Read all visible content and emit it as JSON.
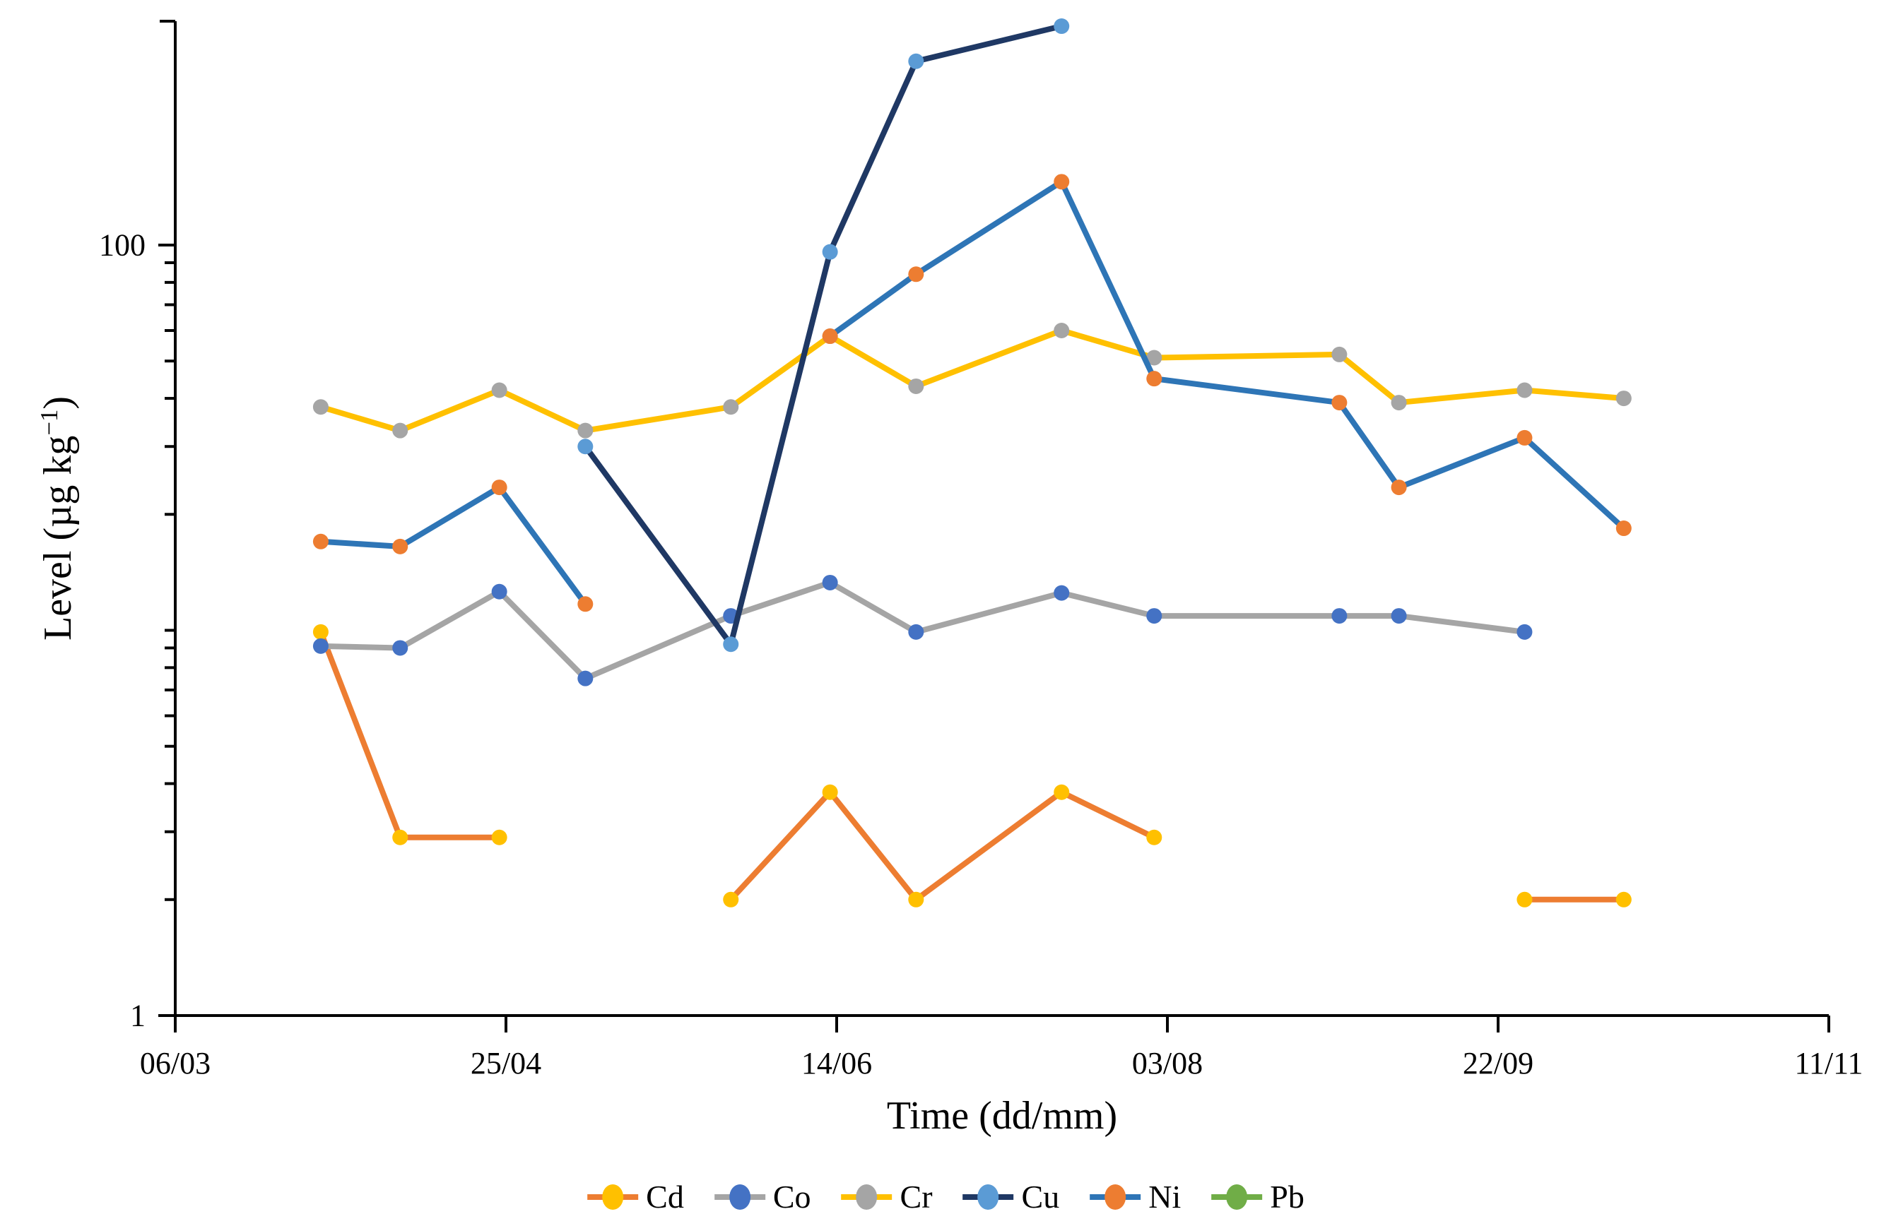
{
  "figure": {
    "background": "#ffffff",
    "text_color": "#000000",
    "axis_color": "#000000"
  },
  "chart_data": {
    "type": "line",
    "title": "",
    "xlabel": "Time (dd/mm)",
    "ylabel": "Level (µg kg⁻¹)",
    "ylabel_parts": {
      "base": "Level (µg kg",
      "sup": "−1",
      "end": ")"
    },
    "y_scale": "log10",
    "ylim": [
      1,
      400
    ],
    "y_major_ticks": [
      1,
      100
    ],
    "y_major_tick_labels": [
      "1",
      "100"
    ],
    "y_minor_ticks": [
      2,
      3,
      4,
      5,
      6,
      7,
      8,
      9,
      10,
      20,
      30,
      40,
      50,
      60,
      70,
      80,
      90
    ],
    "x_tick_labels": [
      "06/03",
      "25/04",
      "14/06",
      "03/08",
      "22/09",
      "11/11"
    ],
    "x_tick_days": [
      0,
      50,
      100,
      150,
      200,
      250
    ],
    "x_days": [
      22,
      34,
      49,
      62,
      84,
      99,
      112,
      134,
      148,
      176,
      185,
      204,
      219
    ],
    "grid": false,
    "legend_position": "bottom",
    "series": [
      {
        "name": "Cd",
        "line_color": "#ED7D31",
        "marker_color": "#FFC000",
        "values": [
          9.9,
          2.9,
          2.9,
          null,
          2.0,
          3.8,
          2.0,
          3.8,
          2.9,
          null,
          null,
          2.0,
          2.0
        ]
      },
      {
        "name": "Co",
        "line_color": "#A5A5A5",
        "marker_color": "#4472C4",
        "values": [
          9.1,
          9.0,
          12.6,
          7.5,
          10.9,
          13.3,
          9.9,
          12.5,
          10.9,
          10.9,
          10.9,
          9.9,
          null
        ]
      },
      {
        "name": "Cr",
        "line_color": "#FFC000",
        "marker_color": "#A5A5A5",
        "values": [
          38,
          33,
          42,
          33,
          38,
          58,
          43,
          60,
          51,
          52,
          39,
          42,
          40
        ]
      },
      {
        "name": "Cu",
        "line_color": "#1F3864",
        "marker_color": "#5B9BD5",
        "values": [
          null,
          null,
          null,
          30,
          9.2,
          96,
          300,
          370,
          null,
          null,
          null,
          null,
          null
        ]
      },
      {
        "name": "Ni",
        "line_color": "#2E75B6",
        "marker_color": "#ED7D31",
        "values": [
          17,
          16.5,
          23.5,
          11.7,
          null,
          58,
          84,
          146,
          45,
          39,
          23.5,
          31.6,
          18.4
        ]
      },
      {
        "name": "Pb",
        "line_color": "#70AD47",
        "marker_color": "#70AD47",
        "values": [
          null,
          null,
          null,
          null,
          null,
          null,
          null,
          null,
          null,
          null,
          null,
          null,
          null
        ]
      }
    ]
  }
}
